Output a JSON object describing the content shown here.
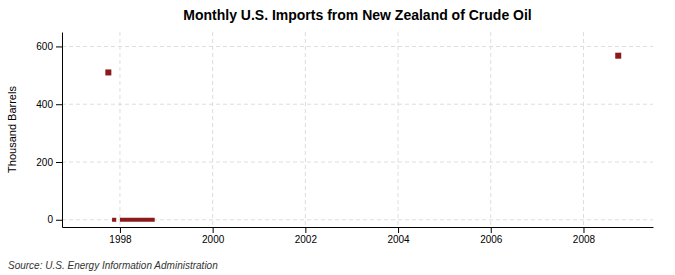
{
  "chart_data": {
    "type": "scatter",
    "title": "Monthly U.S. Imports from New Zealand of Crude Oil",
    "ylabel": "Thousand Barrels",
    "annotations": [
      "Source: U.S. Energy Information Administration"
    ],
    "xlim": [
      1996.75,
      2009.5
    ],
    "ylim": [
      -25,
      650
    ],
    "xticks": [
      1998,
      2000,
      2002,
      2004,
      2006,
      2008
    ],
    "yticks": [
      0,
      200,
      400,
      600
    ],
    "grid": true,
    "series": [
      {
        "type": "scatter",
        "marker": "square",
        "color": "#8b1a1a",
        "x": [
          1997.75,
          2008.75
        ],
        "values": [
          510,
          568
        ]
      },
      {
        "type": "line",
        "color": "#8b1a1a",
        "x": [
          1997.83,
          1997.92
        ],
        "values": [
          0,
          0
        ]
      },
      {
        "type": "line",
        "color": "#8b1a1a",
        "x": [
          1998.0,
          1998.75
        ],
        "values": [
          0,
          0
        ]
      }
    ]
  }
}
